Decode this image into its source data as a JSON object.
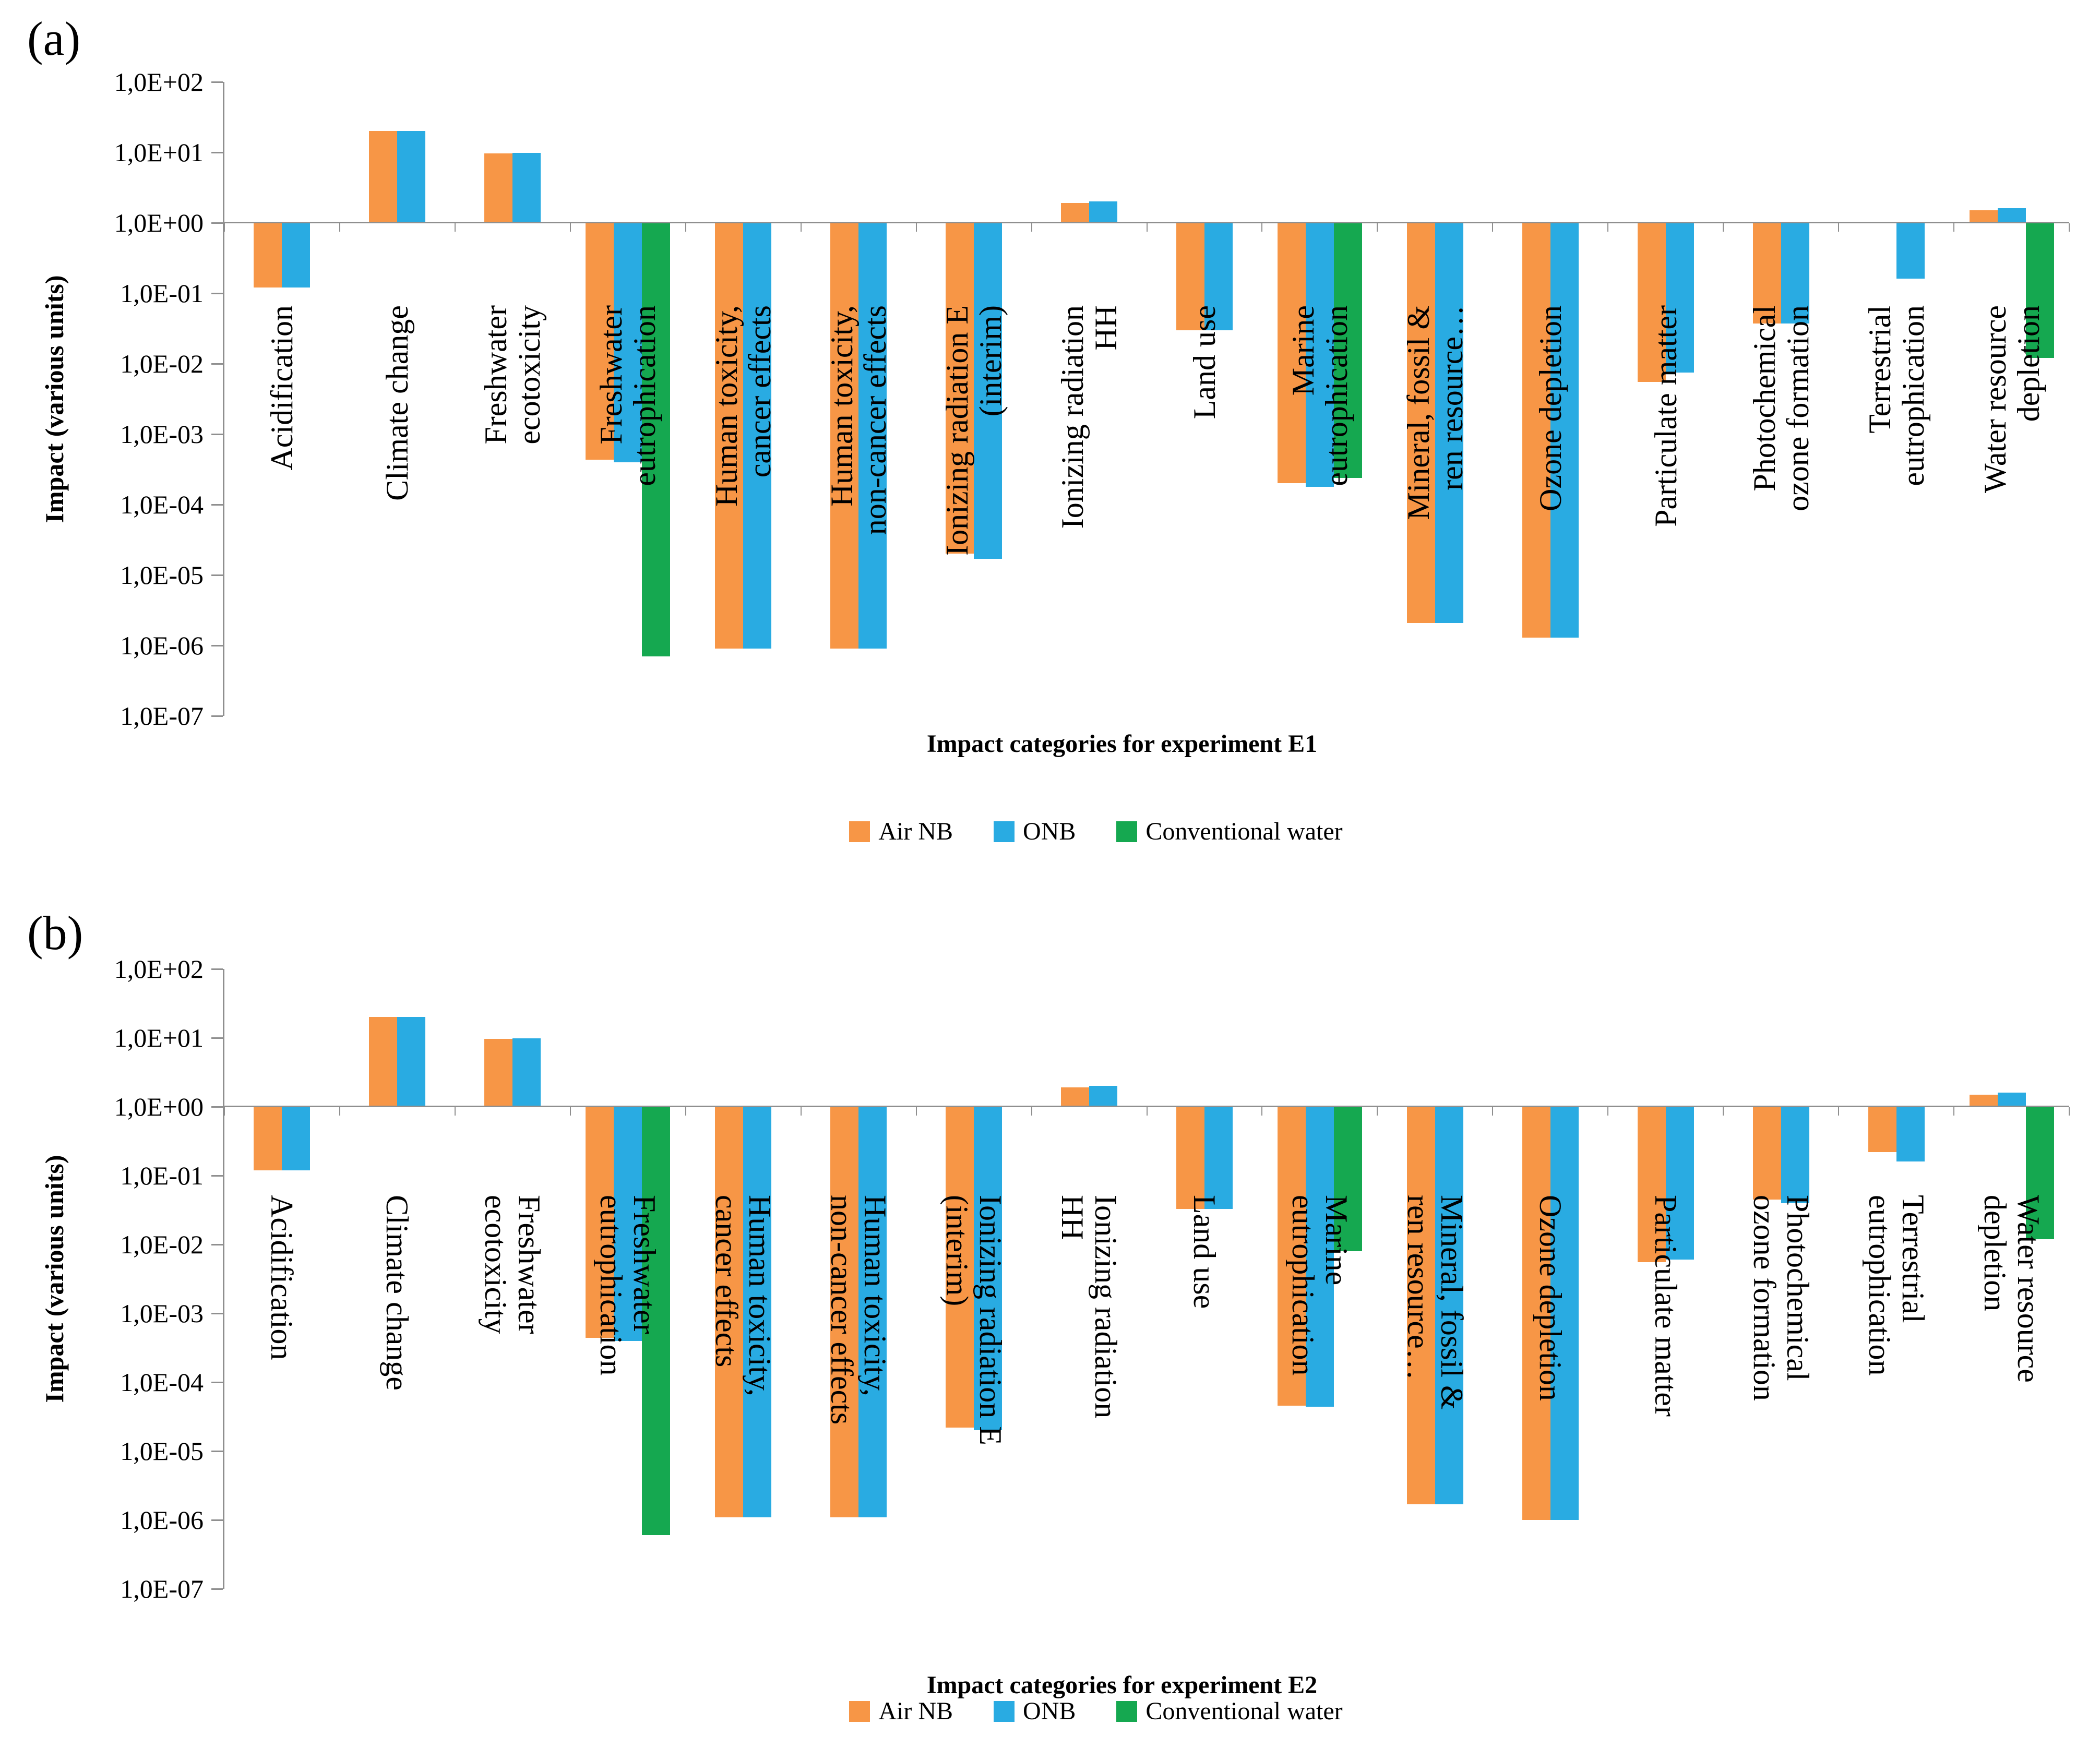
{
  "figure": {
    "panel_letters": [
      "(a)",
      "(b)"
    ],
    "background": "#ffffff",
    "axis_color": "#8f8f8f"
  },
  "legend": {
    "items": [
      {
        "label": "Air NB",
        "color": "#F79646"
      },
      {
        "label": "ONB",
        "color": "#29ABE2"
      },
      {
        "label": "Conventional water",
        "color": "#15A850"
      }
    ]
  },
  "chart_data": [
    {
      "type": "bar",
      "panel": "a",
      "title": "",
      "xlabel": "Impact categories for experiment E1",
      "ylabel": "Impact (various units)",
      "yscale": "log",
      "ylim": [
        1e-07,
        100
      ],
      "baseline": 1.0,
      "grid": "baseline-only",
      "legend_position": "bottom",
      "ytick_labels": [
        "1,0E+02",
        "1,0E+01",
        "1,0E+00",
        "1,0E-01",
        "1,0E-02",
        "1,0E-03",
        "1,0E-04",
        "1,0E-05",
        "1,0E-06",
        "1,0E-07"
      ],
      "categories": [
        "Acidification",
        "Climate change",
        "Freshwater\necotoxicity",
        "Freshwater\neutrophication",
        "Human toxicity,\ncancer effects",
        "Human toxicity,\nnon-cancer effects",
        "Ionizing radiation E\n(interim)",
        "Ionizing radiation\nHH",
        "Land use",
        "Marine\neutrophication",
        "Mineral, fossil &\nren resource…",
        "Ozone depletion",
        "Particulate matter",
        "Photochemical\nozone formation",
        "Terrestrial\neutrophication",
        "Water resource\ndepletion"
      ],
      "series": [
        {
          "name": "Air NB",
          "color": "#F79646",
          "values": [
            0.12,
            20,
            9.7,
            0.00043,
            9e-07,
            9e-07,
            2e-05,
            1.9,
            0.03,
            0.0002,
            2.1e-06,
            1.3e-06,
            0.0055,
            0.037,
            null,
            1.5
          ]
        },
        {
          "name": "ONB",
          "color": "#29ABE2",
          "values": [
            0.12,
            20,
            9.8,
            0.0004,
            9e-07,
            9e-07,
            1.7e-05,
            2.0,
            0.03,
            0.00018,
            2.1e-06,
            1.3e-06,
            0.0075,
            0.037,
            0.16,
            1.6
          ]
        },
        {
          "name": "Conventional water",
          "color": "#15A850",
          "values": [
            null,
            null,
            null,
            7e-07,
            null,
            null,
            null,
            null,
            null,
            0.00024,
            null,
            null,
            null,
            null,
            null,
            0.012
          ]
        }
      ]
    },
    {
      "type": "bar",
      "panel": "b",
      "title": "",
      "xlabel": "Impact categories for experiment E2",
      "ylabel": "Impact (various units)",
      "yscale": "log",
      "ylim": [
        1e-07,
        100
      ],
      "baseline": 1.0,
      "grid": "baseline-only",
      "legend_position": "bottom",
      "ytick_labels": [
        "1,0E+02",
        "1,0E+01",
        "1,0E+00",
        "1,0E-01",
        "1,0E-02",
        "1,0E-03",
        "1,0E-04",
        "1,0E-05",
        "1,0E-06",
        "1,0E-07"
      ],
      "categories": [
        "Acidification",
        "Climate change",
        "Freshwater\necotoxicity",
        "Freshwater\neutrophication",
        "Human toxicity,\ncancer effects",
        "Human toxicity,\nnon-cancer effects",
        "Ionizing radiation E\n(interim)",
        "Ionizing radiation\nHH",
        "Land use",
        "Marine\neutrophication",
        "Mineral, fossil &\nren resource…",
        "Ozone depletion",
        "Particulate matter",
        "Photochemical\nozone formation",
        "Terrestrial\neutrophication",
        "Water resource\ndepletion"
      ],
      "series": [
        {
          "name": "Air NB",
          "color": "#F79646",
          "values": [
            0.12,
            20,
            9.7,
            0.00044,
            1.1e-06,
            1.1e-06,
            2.2e-05,
            1.9,
            0.033,
            4.6e-05,
            1.7e-06,
            1e-06,
            0.0055,
            0.045,
            0.22,
            1.5
          ]
        },
        {
          "name": "ONB",
          "color": "#29ABE2",
          "values": [
            0.12,
            20,
            9.8,
            0.0004,
            1.1e-06,
            1.1e-06,
            2e-05,
            2.0,
            0.033,
            4.4e-05,
            1.7e-06,
            1e-06,
            0.006,
            0.04,
            0.16,
            1.6
          ]
        },
        {
          "name": "Conventional water",
          "color": "#15A850",
          "values": [
            null,
            null,
            null,
            6e-07,
            null,
            null,
            null,
            null,
            null,
            0.008,
            null,
            null,
            null,
            null,
            null,
            0.012
          ]
        }
      ]
    }
  ]
}
